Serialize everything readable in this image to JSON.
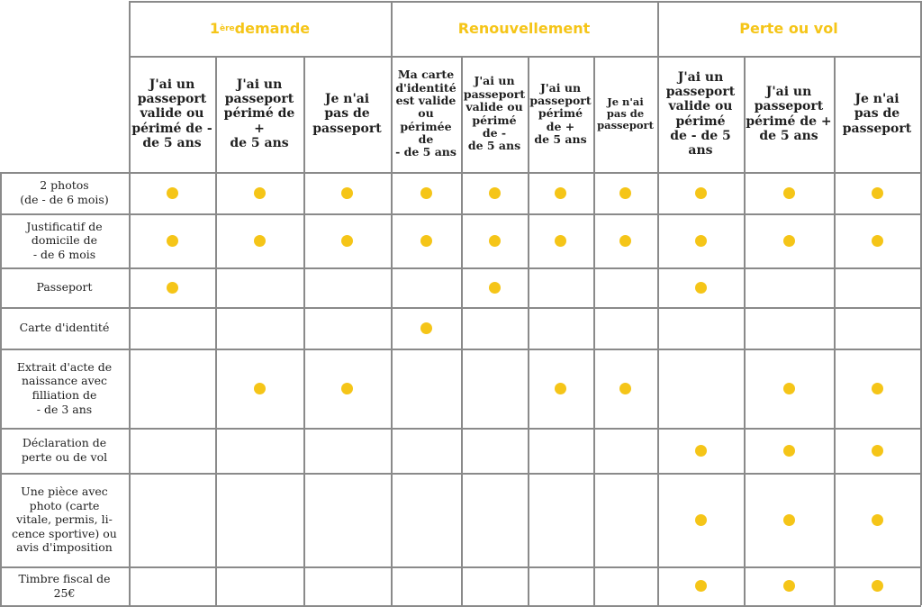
{
  "accent_color": "#f5c518",
  "groups": [
    {
      "label_main": "1",
      "label_sup": "ère",
      "label_rest": " demande"
    },
    {
      "label": "Renouvellement"
    },
    {
      "label": "Perte ou vol"
    }
  ],
  "columns": [
    "J'ai un\npasseport\nvalide ou\npérimé de -\nde 5 ans",
    "J'ai un\npasseport\npérimé de +\nde 5 ans",
    "Je n'ai\npas de\npasseport",
    "Ma carte\nd'identité\nest valide\nou\npérimée de\n- de 5 ans",
    "J'ai un\npasseport\nvalide ou\npérimé\nde -\nde 5 ans",
    "J'ai un\npasseport\npérimé\nde +\nde 5 ans",
    "Je n'ai\npas de\npasseport",
    "J'ai un\npasseport\nvalide ou\npérimé\nde - de 5 ans",
    "J'ai un\npasseport\npérimé de +\nde 5 ans",
    "Je n'ai\npas de\npasseport"
  ],
  "rows": [
    {
      "label": "2 photos\n(de - de 6 mois)",
      "marks": [
        1,
        1,
        1,
        1,
        1,
        1,
        1,
        1,
        1,
        1
      ]
    },
    {
      "label": "Justificatif de\ndomicile de\n- de 6 mois",
      "marks": [
        1,
        1,
        1,
        1,
        1,
        1,
        1,
        1,
        1,
        1
      ]
    },
    {
      "label": "Passeport",
      "marks": [
        1,
        0,
        0,
        0,
        1,
        0,
        0,
        1,
        0,
        0
      ]
    },
    {
      "label": "Carte d'identité",
      "marks": [
        0,
        0,
        0,
        1,
        0,
        0,
        0,
        0,
        0,
        0
      ]
    },
    {
      "label": "Extrait d'acte de\nnaissance avec\nfilliation de\n- de 3 ans",
      "marks": [
        0,
        1,
        1,
        0,
        0,
        1,
        1,
        0,
        1,
        1
      ]
    },
    {
      "label": "Déclaration de\nperte ou de vol",
      "marks": [
        0,
        0,
        0,
        0,
        0,
        0,
        0,
        1,
        1,
        1
      ]
    },
    {
      "label": "Une pièce avec\nphoto (carte\nvitale, permis, li-\ncence sportive) ou\navis d'imposition",
      "marks": [
        0,
        0,
        0,
        0,
        0,
        0,
        0,
        1,
        1,
        1
      ]
    },
    {
      "label": "Timbre fiscal de\n25€",
      "marks": [
        0,
        0,
        0,
        0,
        0,
        0,
        0,
        1,
        1,
        1
      ]
    }
  ]
}
